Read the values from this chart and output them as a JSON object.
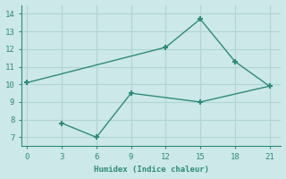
{
  "line1_x": [
    0,
    12,
    15,
    18,
    21
  ],
  "line1_y": [
    10.1,
    12.1,
    13.7,
    11.3,
    9.9
  ],
  "line2_x": [
    3,
    6,
    9,
    15,
    21
  ],
  "line2_y": [
    7.8,
    7.0,
    9.5,
    9.0,
    9.9
  ],
  "color": "#2e8b7a",
  "xlabel": "Humidex (Indice chaleur)",
  "bg_color": "#cce8e8",
  "grid_color": "#b0d4d4",
  "xlim": [
    -0.5,
    22
  ],
  "ylim": [
    6.5,
    14.5
  ],
  "xticks": [
    0,
    3,
    6,
    9,
    12,
    15,
    18,
    21
  ],
  "yticks": [
    7,
    8,
    9,
    10,
    11,
    12,
    13,
    14
  ],
  "marker": "+",
  "markersize": 5,
  "markeredgewidth": 1.5,
  "linewidth": 1.0
}
